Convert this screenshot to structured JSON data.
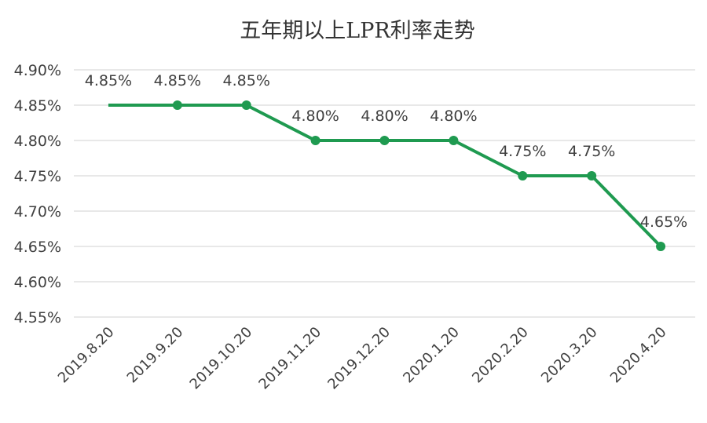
{
  "chart_data": {
    "type": "line",
    "title": "五年期以上LPR利率走势",
    "xlabel": "",
    "ylabel": "",
    "categories": [
      "2019.8.20",
      "2019.9.20",
      "2019.10.20",
      "2019.11.20",
      "2019.12.20",
      "2020.1.20",
      "2020.2.20",
      "2020.3.20",
      "2020.4.20"
    ],
    "values": [
      4.85,
      4.85,
      4.85,
      4.8,
      4.8,
      4.8,
      4.75,
      4.75,
      4.65
    ],
    "data_labels": [
      "4.85%",
      "4.85%",
      "4.85%",
      "4.80%",
      "4.80%",
      "4.80%",
      "4.75%",
      "4.75%",
      "4.65%"
    ],
    "ylim": [
      4.55,
      4.9
    ],
    "yticks": [
      "4.55%",
      "4.60%",
      "4.65%",
      "4.70%",
      "4.75%",
      "4.80%",
      "4.85%",
      "4.90%"
    ],
    "grid": true,
    "legend": "none",
    "line_color": "#1f9a50",
    "marker_color": "#1f9a50",
    "first_point_marker": false
  }
}
